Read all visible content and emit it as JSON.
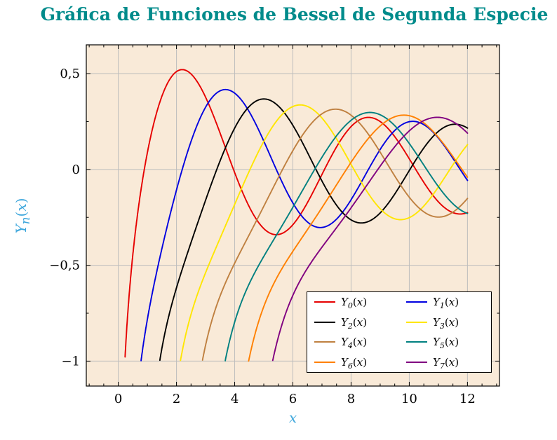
{
  "chart_data": {
    "type": "line",
    "title": "Gráfica de Funciones de Bessel de Segunda Especie",
    "title_color": "#008b8b",
    "xlabel": "x",
    "ylabel": "Y_n(x)",
    "axis_label_color": "#3fa7dc",
    "plot_background": "#f9ead8",
    "grid": true,
    "grid_color": "#bdbdbd",
    "frame_color": "#000000",
    "xlim": [
      -1.1,
      13.1
    ],
    "ylim": [
      -1.13,
      0.65
    ],
    "x_ticks": [
      {
        "v": 0,
        "label": "0"
      },
      {
        "v": 2,
        "label": "2"
      },
      {
        "v": 4,
        "label": "4"
      },
      {
        "v": 6,
        "label": "6"
      },
      {
        "v": 8,
        "label": "8"
      },
      {
        "v": 10,
        "label": "10"
      },
      {
        "v": 12,
        "label": "12"
      }
    ],
    "y_ticks": [
      {
        "v": 0.5,
        "label": "0,5"
      },
      {
        "v": 0,
        "label": "0"
      },
      {
        "v": -0.5,
        "label": "−0,5"
      },
      {
        "v": -1,
        "label": "−1"
      }
    ],
    "x_minor_step": 0.5,
    "y_minor_step": 0.25,
    "function_family": "Bessel functions of the second kind Y_n(x)",
    "sample_domain": [
      0.05,
      12
    ],
    "clip_y_min": -1.0,
    "legend_position": "south east",
    "legend_columns": 2,
    "series": [
      {
        "label": "Y_0(x)",
        "order": 0,
        "color": "#e60000"
      },
      {
        "label": "Y_1(x)",
        "order": 1,
        "color": "#0000e0"
      },
      {
        "label": "Y_2(x)",
        "order": 2,
        "color": "#000000"
      },
      {
        "label": "Y_3(x)",
        "order": 3,
        "color": "#ffe600"
      },
      {
        "label": "Y_4(x)",
        "order": 4,
        "color": "#bf8040"
      },
      {
        "label": "Y_5(x)",
        "order": 5,
        "color": "#008080"
      },
      {
        "label": "Y_6(x)",
        "order": 6,
        "color": "#ff8000"
      },
      {
        "label": "Y_7(x)",
        "order": 7,
        "color": "#800080"
      }
    ]
  }
}
